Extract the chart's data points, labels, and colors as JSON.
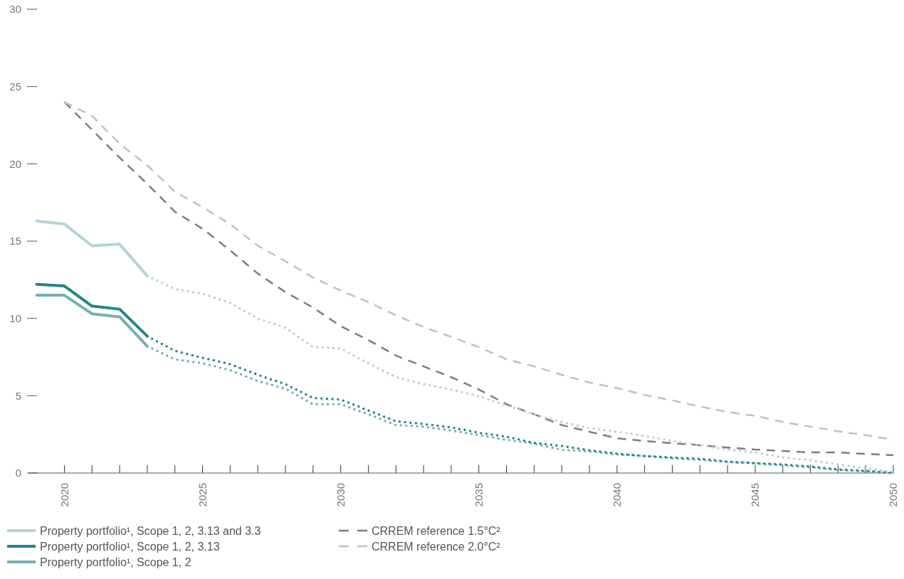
{
  "chart_data": {
    "type": "line",
    "xlim": [
      2018.7,
      2050
    ],
    "ylim": [
      0,
      30
    ],
    "xticks": [
      {
        "value": 2020,
        "label": "2020"
      },
      {
        "value": 2021,
        "label": null
      },
      {
        "value": 2022,
        "label": null
      },
      {
        "value": 2023,
        "label": null
      },
      {
        "value": 2024,
        "label": null
      },
      {
        "value": 2025,
        "label": "2025"
      },
      {
        "value": 2026,
        "label": null
      },
      {
        "value": 2027,
        "label": null
      },
      {
        "value": 2028,
        "label": null
      },
      {
        "value": 2029,
        "label": null
      },
      {
        "value": 2030,
        "label": "2030"
      },
      {
        "value": 2031,
        "label": null
      },
      {
        "value": 2032,
        "label": null
      },
      {
        "value": 2033,
        "label": null
      },
      {
        "value": 2034,
        "label": null
      },
      {
        "value": 2035,
        "label": "2035"
      },
      {
        "value": 2036,
        "label": null
      },
      {
        "value": 2037,
        "label": null
      },
      {
        "value": 2038,
        "label": null
      },
      {
        "value": 2039,
        "label": null
      },
      {
        "value": 2040,
        "label": "2040"
      },
      {
        "value": 2041,
        "label": null
      },
      {
        "value": 2042,
        "label": null
      },
      {
        "value": 2043,
        "label": null
      },
      {
        "value": 2044,
        "label": null
      },
      {
        "value": 2045,
        "label": "2045"
      },
      {
        "value": 2046,
        "label": null
      },
      {
        "value": 2047,
        "label": null
      },
      {
        "value": 2048,
        "label": null
      },
      {
        "value": 2049,
        "label": null
      },
      {
        "value": 2050,
        "label": "2050"
      }
    ],
    "yticks": [
      0,
      5,
      10,
      15,
      20,
      25,
      30
    ],
    "grid": false,
    "legend": "bottom",
    "series": [
      {
        "name": "Property portfolio¹, Scope 1, 2, 3.13 and 3.3",
        "color": "#b3d3d6",
        "line_style": "solid",
        "x": [
          2019,
          2020,
          2021,
          2022,
          2023
        ],
        "values": [
          16.3,
          16.1,
          14.7,
          14.8,
          12.75
        ]
      },
      {
        "name": "Property portfolio¹, Scope 1, 2, 3.13",
        "color": "#1f868c",
        "line_style": "solid",
        "x": [
          2019,
          2020,
          2021,
          2022,
          2023
        ],
        "values": [
          12.2,
          12.1,
          10.8,
          10.6,
          8.85
        ]
      },
      {
        "name": "Property portfolio¹, Scope 1, 2",
        "color": "#78aeb3",
        "line_style": "solid",
        "x": [
          2019,
          2020,
          2021,
          2022,
          2023
        ],
        "values": [
          11.5,
          11.5,
          10.3,
          10.1,
          8.2
        ]
      },
      {
        "name": "CRREM reference 1.5°C²",
        "color": "#7f7d78",
        "line_style": "dashed",
        "x": [
          2020,
          2021,
          2022,
          2023,
          2024,
          2025,
          2026,
          2027,
          2028,
          2029,
          2030,
          2031,
          2032,
          2033,
          2034,
          2035,
          2036,
          2037,
          2038,
          2039,
          2040,
          2041,
          2042,
          2043,
          2044,
          2045,
          2046,
          2047,
          2048,
          2049,
          2050
        ],
        "values": [
          24.0,
          22.2,
          20.4,
          18.7,
          16.9,
          15.8,
          14.4,
          12.9,
          11.7,
          10.7,
          9.5,
          8.6,
          7.6,
          6.9,
          6.2,
          5.4,
          4.45,
          3.8,
          3.1,
          2.67,
          2.25,
          2.07,
          1.93,
          1.8,
          1.65,
          1.52,
          1.43,
          1.33,
          1.33,
          1.24,
          1.15
        ]
      },
      {
        "name": "CRREM reference 2.0°C²",
        "color": "#c0c0c0",
        "line_style": "dashed",
        "x": [
          2020,
          2021,
          2022,
          2023,
          2024,
          2025,
          2026,
          2027,
          2028,
          2029,
          2030,
          2031,
          2032,
          2033,
          2034,
          2035,
          2036,
          2037,
          2038,
          2039,
          2040,
          2041,
          2042,
          2043,
          2044,
          2045,
          2046,
          2047,
          2048,
          2049,
          2050
        ],
        "values": [
          24.0,
          23.1,
          21.3,
          19.9,
          18.2,
          17.2,
          16.1,
          14.7,
          13.7,
          12.65,
          11.8,
          11.05,
          10.2,
          9.45,
          8.8,
          8.15,
          7.35,
          6.9,
          6.35,
          5.85,
          5.5,
          5.05,
          4.7,
          4.3,
          3.95,
          3.7,
          3.3,
          3.0,
          2.7,
          2.45,
          2.15
        ]
      },
      {
        "color": "#b3d3d6",
        "line_style": "dotted",
        "x": [
          2023,
          2024,
          2025,
          2026,
          2027,
          2028,
          2029,
          2030,
          2031,
          2032,
          2033,
          2034,
          2035,
          2036,
          2037,
          2038,
          2039,
          2040,
          2041,
          2042,
          2043,
          2044,
          2045,
          2046,
          2047,
          2048,
          2049,
          2050
        ],
        "values": [
          12.75,
          11.9,
          11.6,
          11.0,
          10.0,
          9.4,
          8.15,
          8.05,
          7.1,
          6.2,
          5.75,
          5.4,
          4.97,
          4.37,
          3.8,
          3.3,
          2.9,
          2.67,
          2.4,
          2.07,
          1.8,
          1.52,
          1.33,
          1.0,
          0.83,
          0.55,
          0.3,
          0.05
        ]
      },
      {
        "color": "#78aeb3",
        "line_style": "dotted",
        "x": [
          2023,
          2024,
          2025,
          2026,
          2027,
          2028,
          2029,
          2030,
          2031,
          2032,
          2033,
          2034,
          2035,
          2036,
          2037,
          2038,
          2039,
          2040,
          2041,
          2042,
          2043,
          2044,
          2045,
          2046,
          2047,
          2048,
          2049,
          2050
        ],
        "values": [
          8.2,
          7.35,
          7.1,
          6.65,
          5.95,
          5.45,
          4.45,
          4.45,
          3.8,
          3.1,
          3.0,
          2.75,
          2.45,
          2.15,
          1.9,
          1.5,
          1.4,
          1.2,
          1.1,
          0.95,
          0.85,
          0.72,
          0.62,
          0.5,
          0.37,
          0.2,
          0.1,
          0
        ]
      },
      {
        "color": "#1f868c",
        "line_style": "dotted",
        "x": [
          2023,
          2024,
          2025,
          2026,
          2027,
          2028,
          2029,
          2030,
          2031,
          2032,
          2033,
          2034,
          2035,
          2036,
          2037,
          2038,
          2039,
          2040,
          2041,
          2042,
          2043,
          2044,
          2045,
          2046,
          2047,
          2048,
          2049,
          2050
        ],
        "values": [
          8.85,
          7.9,
          7.45,
          7.05,
          6.35,
          5.75,
          4.85,
          4.75,
          4.05,
          3.35,
          3.17,
          2.95,
          2.6,
          2.35,
          1.95,
          1.75,
          1.47,
          1.25,
          1.1,
          1.0,
          0.92,
          0.74,
          0.64,
          0.55,
          0.42,
          0.23,
          0.14,
          0
        ]
      }
    ]
  }
}
